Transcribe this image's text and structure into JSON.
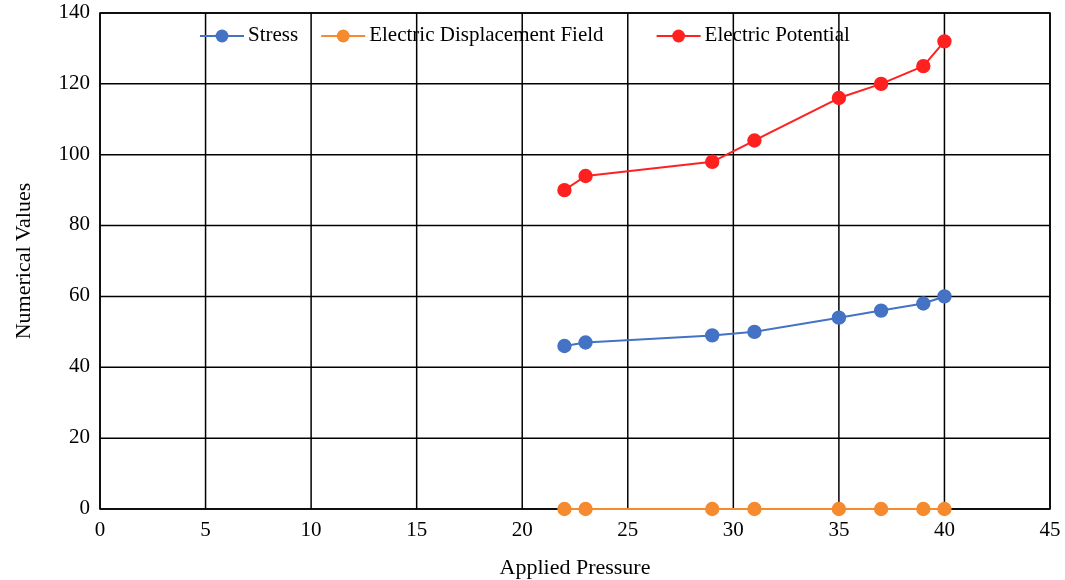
{
  "chart_data": {
    "type": "line",
    "xlabel": "Applied Pressure",
    "ylabel": "Numerical Values",
    "x": [
      22,
      23,
      29,
      31,
      35,
      37,
      39,
      40
    ],
    "series": [
      {
        "name": "Stress",
        "color": "#4472c4",
        "values": [
          46,
          47,
          49,
          50,
          54,
          56,
          58,
          60
        ]
      },
      {
        "name": "Electric Displacement Field",
        "color": "#f58a2f",
        "values": [
          0,
          0,
          0,
          0,
          0,
          0,
          0,
          0
        ]
      },
      {
        "name": "Electric Potential",
        "color": "#ff2020",
        "values": [
          90,
          94,
          98,
          104,
          116,
          120,
          125,
          132
        ]
      }
    ],
    "xlim": [
      0,
      45
    ],
    "xticks": [
      0,
      5,
      10,
      15,
      20,
      25,
      30,
      35,
      40,
      45
    ],
    "ylim": [
      0,
      140
    ],
    "yticks": [
      0,
      20,
      40,
      60,
      80,
      100,
      120,
      140
    ],
    "grid": true,
    "legend": "top",
    "marker": "circle",
    "line_style": "solid"
  }
}
